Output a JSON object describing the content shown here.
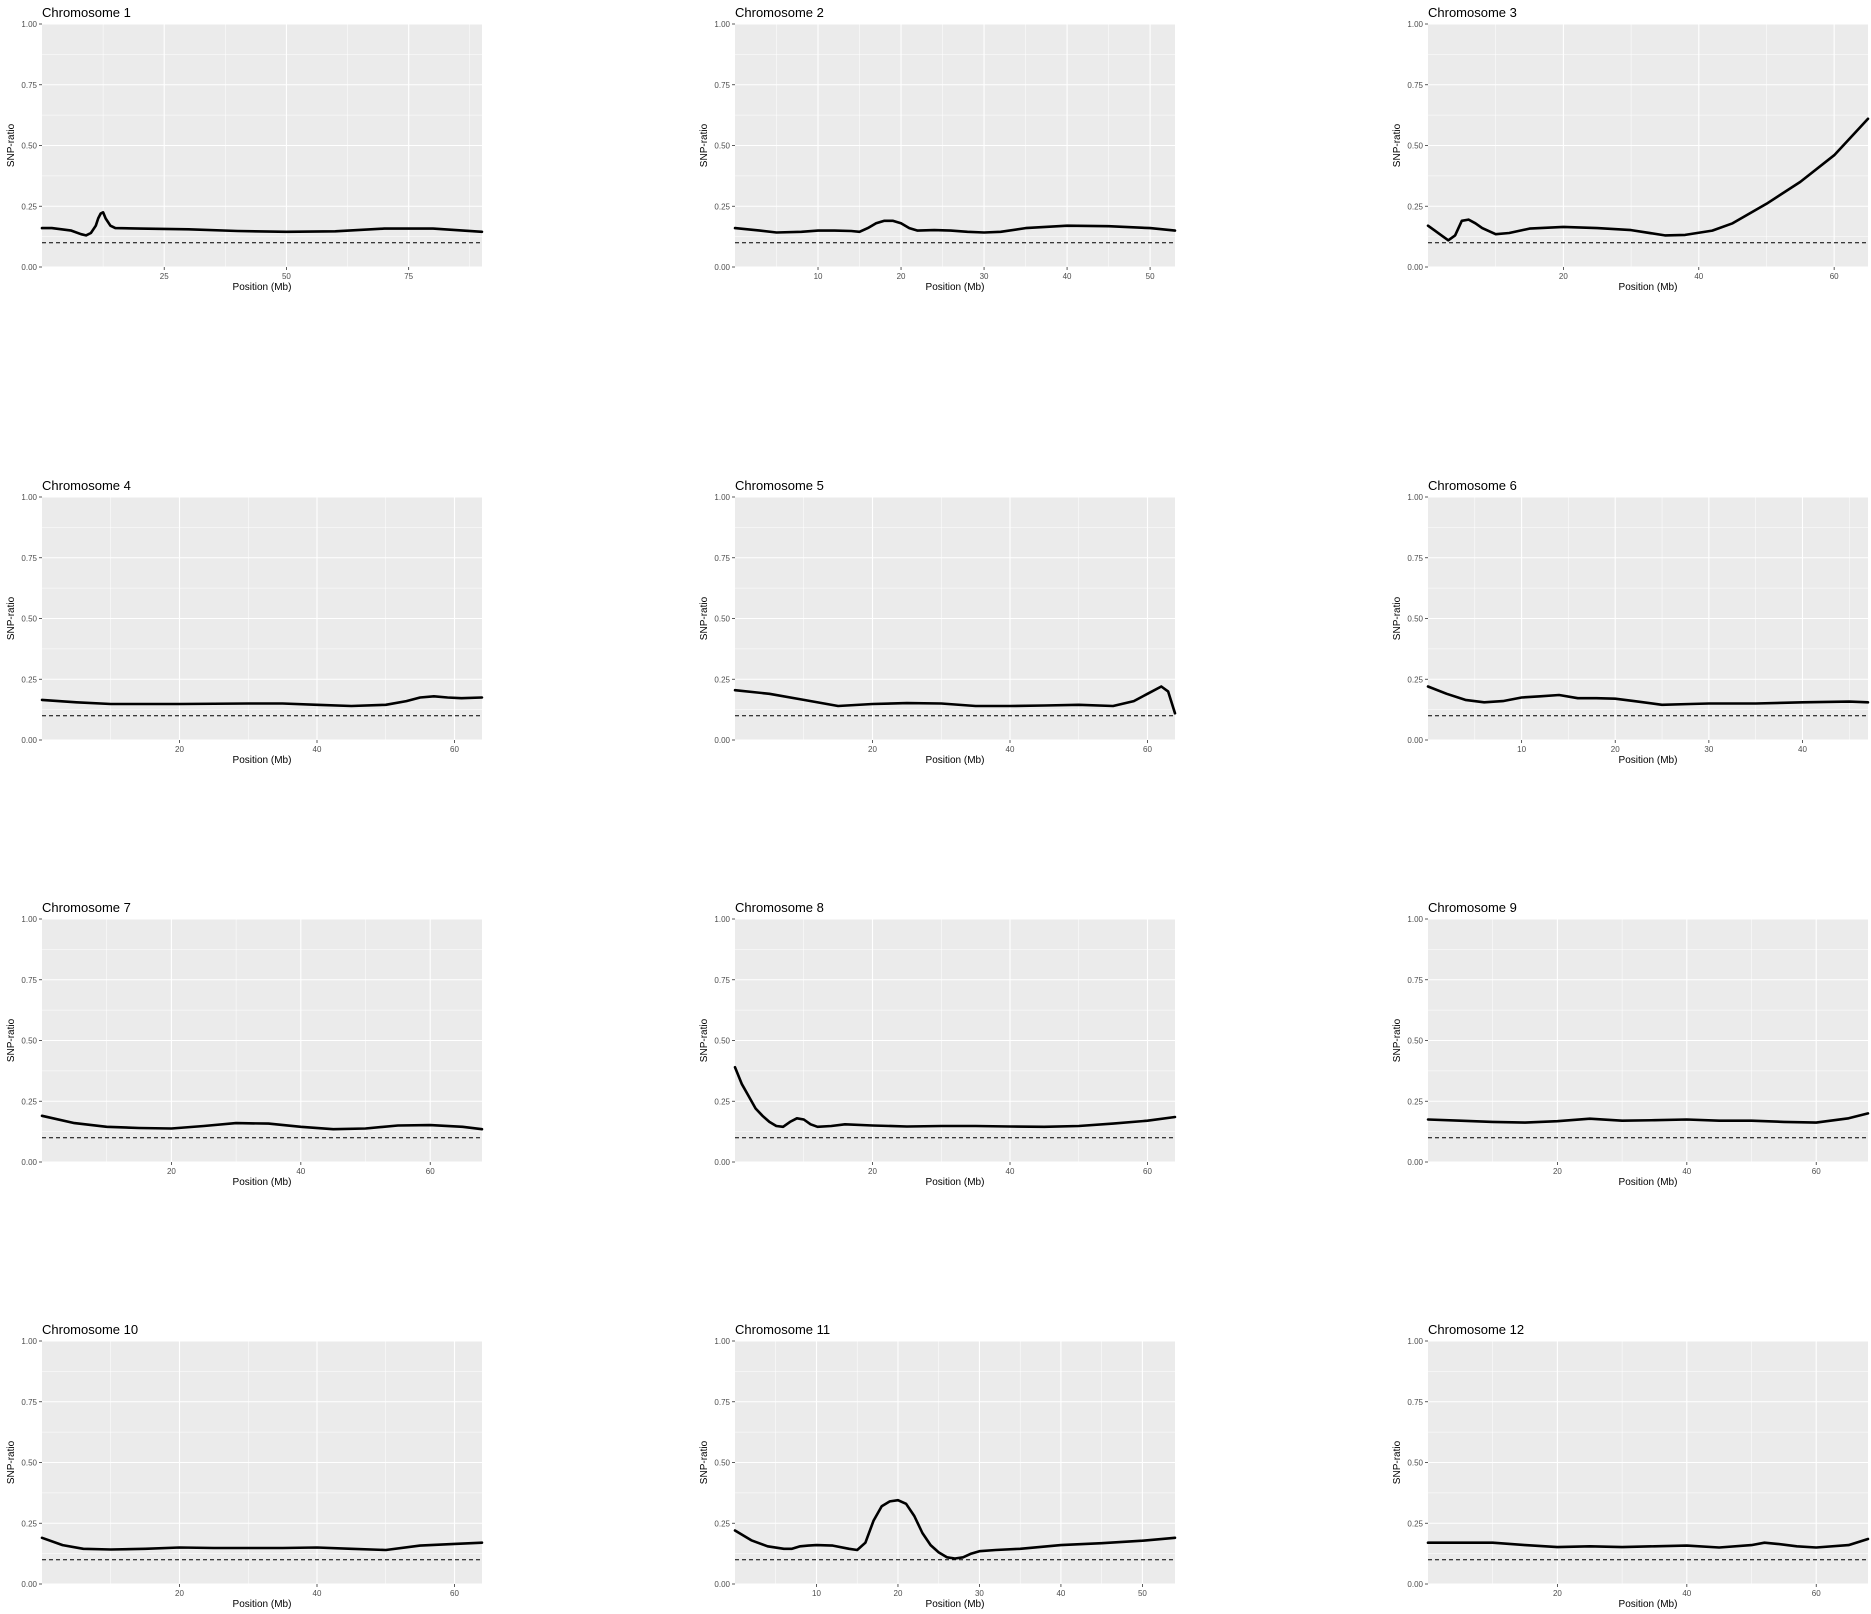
{
  "chart_data": [
    {
      "type": "line",
      "title": "Chromosome 1",
      "xlabel": "Position (Mb)",
      "ylabel": "SNP-ratio",
      "xlim": [
        0,
        90
      ],
      "ylim": [
        0,
        1
      ],
      "xticks": [
        25,
        50,
        75
      ],
      "yticks": [
        0,
        0.25,
        0.5,
        0.75,
        1
      ],
      "ytick_labels": [
        "0.00",
        "0.25",
        "0.50",
        "0.75",
        "1.00"
      ],
      "threshold": 0.1,
      "grid": true,
      "series": [
        {
          "x": [
            0,
            2,
            4,
            6,
            8,
            9,
            10,
            11,
            11.5,
            12,
            12.5,
            13,
            14,
            15,
            20,
            30,
            40,
            50,
            60,
            70,
            80,
            90
          ],
          "y": [
            0.16,
            0.16,
            0.155,
            0.15,
            0.135,
            0.13,
            0.14,
            0.17,
            0.2,
            0.22,
            0.225,
            0.2,
            0.17,
            0.16,
            0.158,
            0.155,
            0.148,
            0.145,
            0.147,
            0.158,
            0.158,
            0.145
          ]
        }
      ]
    },
    {
      "type": "line",
      "title": "Chromosome 2",
      "xlabel": "Position (Mb)",
      "ylabel": "SNP-ratio",
      "xlim": [
        0,
        53
      ],
      "ylim": [
        0,
        1
      ],
      "xticks": [
        10,
        20,
        30,
        40,
        50
      ],
      "yticks": [
        0,
        0.25,
        0.5,
        0.75,
        1
      ],
      "ytick_labels": [
        "0.00",
        "0.25",
        "0.50",
        "0.75",
        "1.00"
      ],
      "threshold": 0.1,
      "grid": true,
      "series": [
        {
          "x": [
            0,
            3,
            5,
            8,
            10,
            12,
            14,
            15,
            16,
            17,
            18,
            19,
            20,
            21,
            22,
            24,
            26,
            28,
            30,
            32,
            35,
            40,
            45,
            50,
            53
          ],
          "y": [
            0.16,
            0.15,
            0.142,
            0.145,
            0.15,
            0.15,
            0.148,
            0.145,
            0.16,
            0.18,
            0.19,
            0.19,
            0.18,
            0.16,
            0.15,
            0.152,
            0.15,
            0.145,
            0.142,
            0.145,
            0.16,
            0.17,
            0.168,
            0.16,
            0.15
          ]
        }
      ]
    },
    {
      "type": "line",
      "title": "Chromosome 3",
      "xlabel": "Position (Mb)",
      "ylabel": "SNP-ratio",
      "xlim": [
        0,
        65
      ],
      "ylim": [
        0,
        1
      ],
      "xticks": [
        20,
        40,
        60
      ],
      "yticks": [
        0,
        0.25,
        0.5,
        0.75,
        1
      ],
      "ytick_labels": [
        "0.00",
        "0.25",
        "0.50",
        "0.75",
        "1.00"
      ],
      "threshold": 0.1,
      "grid": true,
      "series": [
        {
          "x": [
            0,
            1,
            2,
            3,
            4,
            5,
            6,
            7,
            8,
            10,
            12,
            15,
            20,
            25,
            30,
            35,
            38,
            42,
            45,
            50,
            55,
            60,
            65
          ],
          "y": [
            0.17,
            0.15,
            0.13,
            0.11,
            0.13,
            0.19,
            0.195,
            0.18,
            0.16,
            0.135,
            0.14,
            0.158,
            0.165,
            0.16,
            0.152,
            0.13,
            0.132,
            0.15,
            0.18,
            0.26,
            0.35,
            0.46,
            0.61
          ]
        }
      ]
    },
    {
      "type": "line",
      "title": "Chromosome 4",
      "xlabel": "Position (Mb)",
      "ylabel": "SNP-ratio",
      "xlim": [
        0,
        64
      ],
      "ylim": [
        0,
        1
      ],
      "xticks": [
        20,
        40,
        60
      ],
      "yticks": [
        0,
        0.25,
        0.5,
        0.75,
        1
      ],
      "ytick_labels": [
        "0.00",
        "0.25",
        "0.50",
        "0.75",
        "1.00"
      ],
      "threshold": 0.1,
      "grid": true,
      "series": [
        {
          "x": [
            0,
            5,
            10,
            20,
            30,
            35,
            40,
            45,
            50,
            53,
            55,
            57,
            59,
            61,
            64
          ],
          "y": [
            0.165,
            0.155,
            0.148,
            0.148,
            0.15,
            0.15,
            0.145,
            0.14,
            0.145,
            0.16,
            0.175,
            0.18,
            0.175,
            0.172,
            0.175
          ]
        }
      ]
    },
    {
      "type": "line",
      "title": "Chromosome 5",
      "xlabel": "Position (Mb)",
      "ylabel": "SNP-ratio",
      "xlim": [
        0,
        64
      ],
      "ylim": [
        0,
        1
      ],
      "xticks": [
        20,
        40,
        60
      ],
      "yticks": [
        0,
        0.25,
        0.5,
        0.75,
        1
      ],
      "ytick_labels": [
        "0.00",
        "0.25",
        "0.50",
        "0.75",
        "1.00"
      ],
      "threshold": 0.1,
      "grid": true,
      "series": [
        {
          "x": [
            0,
            5,
            10,
            15,
            20,
            25,
            30,
            35,
            40,
            45,
            50,
            55,
            58,
            60,
            62,
            63,
            64
          ],
          "y": [
            0.205,
            0.19,
            0.165,
            0.14,
            0.148,
            0.152,
            0.15,
            0.14,
            0.14,
            0.142,
            0.145,
            0.14,
            0.16,
            0.19,
            0.22,
            0.2,
            0.11
          ]
        }
      ]
    },
    {
      "type": "line",
      "title": "Chromosome 6",
      "xlabel": "Position (Mb)",
      "ylabel": "SNP-ratio",
      "xlim": [
        0,
        47
      ],
      "ylim": [
        0,
        1
      ],
      "xticks": [
        10,
        20,
        30,
        40
      ],
      "yticks": [
        0,
        0.25,
        0.5,
        0.75,
        1
      ],
      "ytick_labels": [
        "0.00",
        "0.25",
        "0.50",
        "0.75",
        "1.00"
      ],
      "threshold": 0.1,
      "grid": true,
      "series": [
        {
          "x": [
            0,
            2,
            4,
            6,
            8,
            10,
            12,
            14,
            16,
            18,
            20,
            22,
            25,
            28,
            30,
            35,
            40,
            45,
            47
          ],
          "y": [
            0.22,
            0.19,
            0.165,
            0.155,
            0.16,
            0.175,
            0.18,
            0.185,
            0.172,
            0.172,
            0.17,
            0.16,
            0.145,
            0.148,
            0.15,
            0.15,
            0.155,
            0.158,
            0.155
          ]
        }
      ]
    },
    {
      "type": "line",
      "title": "Chromosome 7",
      "xlabel": "Position (Mb)",
      "ylabel": "SNP-ratio",
      "xlim": [
        0,
        68
      ],
      "ylim": [
        0,
        1
      ],
      "xticks": [
        20,
        40,
        60
      ],
      "yticks": [
        0,
        0.25,
        0.5,
        0.75,
        1
      ],
      "ytick_labels": [
        "0.00",
        "0.25",
        "0.50",
        "0.75",
        "1.00"
      ],
      "threshold": 0.1,
      "grid": true,
      "series": [
        {
          "x": [
            0,
            5,
            10,
            15,
            20,
            25,
            30,
            35,
            40,
            45,
            50,
            55,
            60,
            65,
            68
          ],
          "y": [
            0.19,
            0.16,
            0.145,
            0.14,
            0.138,
            0.148,
            0.16,
            0.158,
            0.145,
            0.135,
            0.138,
            0.15,
            0.152,
            0.145,
            0.135
          ]
        }
      ]
    },
    {
      "type": "line",
      "title": "Chromosome 8",
      "xlabel": "Position (Mb)",
      "ylabel": "SNP-ratio",
      "xlim": [
        0,
        64
      ],
      "ylim": [
        0,
        1
      ],
      "xticks": [
        20,
        40,
        60
      ],
      "yticks": [
        0,
        0.25,
        0.5,
        0.75,
        1
      ],
      "ytick_labels": [
        "0.00",
        "0.25",
        "0.50",
        "0.75",
        "1.00"
      ],
      "threshold": 0.1,
      "grid": true,
      "series": [
        {
          "x": [
            0,
            1,
            2,
            3,
            4,
            5,
            6,
            7,
            8,
            9,
            10,
            11,
            12,
            14,
            16,
            20,
            25,
            30,
            35,
            40,
            45,
            50,
            55,
            60,
            64
          ],
          "y": [
            0.39,
            0.32,
            0.27,
            0.22,
            0.19,
            0.165,
            0.148,
            0.145,
            0.165,
            0.18,
            0.175,
            0.155,
            0.145,
            0.148,
            0.155,
            0.15,
            0.146,
            0.148,
            0.148,
            0.146,
            0.145,
            0.148,
            0.158,
            0.17,
            0.185
          ]
        }
      ]
    },
    {
      "type": "line",
      "title": "Chromosome 9",
      "xlabel": "Position (Mb)",
      "ylabel": "SNP-ratio",
      "xlim": [
        0,
        68
      ],
      "ylim": [
        0,
        1
      ],
      "xticks": [
        20,
        40,
        60
      ],
      "yticks": [
        0,
        0.25,
        0.5,
        0.75,
        1
      ],
      "ytick_labels": [
        "0.00",
        "0.25",
        "0.50",
        "0.75",
        "1.00"
      ],
      "threshold": 0.1,
      "grid": true,
      "series": [
        {
          "x": [
            0,
            5,
            10,
            15,
            20,
            25,
            30,
            35,
            40,
            45,
            50,
            55,
            60,
            65,
            68
          ],
          "y": [
            0.175,
            0.17,
            0.165,
            0.162,
            0.168,
            0.178,
            0.17,
            0.172,
            0.175,
            0.17,
            0.17,
            0.165,
            0.162,
            0.18,
            0.2
          ]
        }
      ]
    },
    {
      "type": "line",
      "title": "Chromosome 10",
      "xlabel": "Position (Mb)",
      "ylabel": "SNP-ratio",
      "xlim": [
        0,
        64
      ],
      "ylim": [
        0,
        1
      ],
      "xticks": [
        20,
        40,
        60
      ],
      "yticks": [
        0,
        0.25,
        0.5,
        0.75,
        1
      ],
      "ytick_labels": [
        "0.00",
        "0.25",
        "0.50",
        "0.75",
        "1.00"
      ],
      "threshold": 0.1,
      "grid": true,
      "series": [
        {
          "x": [
            0,
            3,
            6,
            10,
            15,
            20,
            25,
            30,
            35,
            40,
            45,
            50,
            55,
            60,
            64
          ],
          "y": [
            0.19,
            0.16,
            0.145,
            0.142,
            0.145,
            0.15,
            0.148,
            0.148,
            0.148,
            0.15,
            0.145,
            0.14,
            0.158,
            0.165,
            0.17
          ]
        }
      ]
    },
    {
      "type": "line",
      "title": "Chromosome 11",
      "xlabel": "Position (Mb)",
      "ylabel": "SNP-ratio",
      "xlim": [
        0,
        54
      ],
      "ylim": [
        0,
        1
      ],
      "xticks": [
        10,
        20,
        30,
        40,
        50
      ],
      "yticks": [
        0,
        0.25,
        0.5,
        0.75,
        1
      ],
      "ytick_labels": [
        "0.00",
        "0.25",
        "0.50",
        "0.75",
        "1.00"
      ],
      "threshold": 0.1,
      "grid": true,
      "series": [
        {
          "x": [
            0,
            2,
            4,
            6,
            7,
            8,
            9,
            10,
            12,
            14,
            15,
            16,
            17,
            18,
            19,
            20,
            21,
            22,
            23,
            24,
            25,
            26,
            27,
            28,
            29,
            30,
            32,
            35,
            40,
            45,
            50,
            54
          ],
          "y": [
            0.22,
            0.18,
            0.155,
            0.145,
            0.145,
            0.155,
            0.158,
            0.16,
            0.158,
            0.145,
            0.14,
            0.17,
            0.26,
            0.32,
            0.34,
            0.345,
            0.33,
            0.28,
            0.21,
            0.16,
            0.13,
            0.11,
            0.105,
            0.11,
            0.125,
            0.135,
            0.14,
            0.145,
            0.16,
            0.168,
            0.178,
            0.19
          ]
        }
      ]
    },
    {
      "type": "line",
      "title": "Chromosome 12",
      "xlabel": "Position (Mb)",
      "ylabel": "SNP-ratio",
      "xlim": [
        0,
        68
      ],
      "ylim": [
        0,
        1
      ],
      "xticks": [
        20,
        40,
        60
      ],
      "yticks": [
        0,
        0.25,
        0.5,
        0.75,
        1
      ],
      "ytick_labels": [
        "0.00",
        "0.25",
        "0.50",
        "0.75",
        "1.00"
      ],
      "threshold": 0.1,
      "grid": true,
      "series": [
        {
          "x": [
            0,
            5,
            10,
            15,
            20,
            25,
            30,
            35,
            40,
            45,
            50,
            52,
            54,
            57,
            60,
            65,
            68
          ],
          "y": [
            0.17,
            0.17,
            0.17,
            0.16,
            0.152,
            0.155,
            0.152,
            0.155,
            0.158,
            0.15,
            0.16,
            0.17,
            0.165,
            0.155,
            0.15,
            0.16,
            0.185
          ]
        }
      ]
    }
  ]
}
